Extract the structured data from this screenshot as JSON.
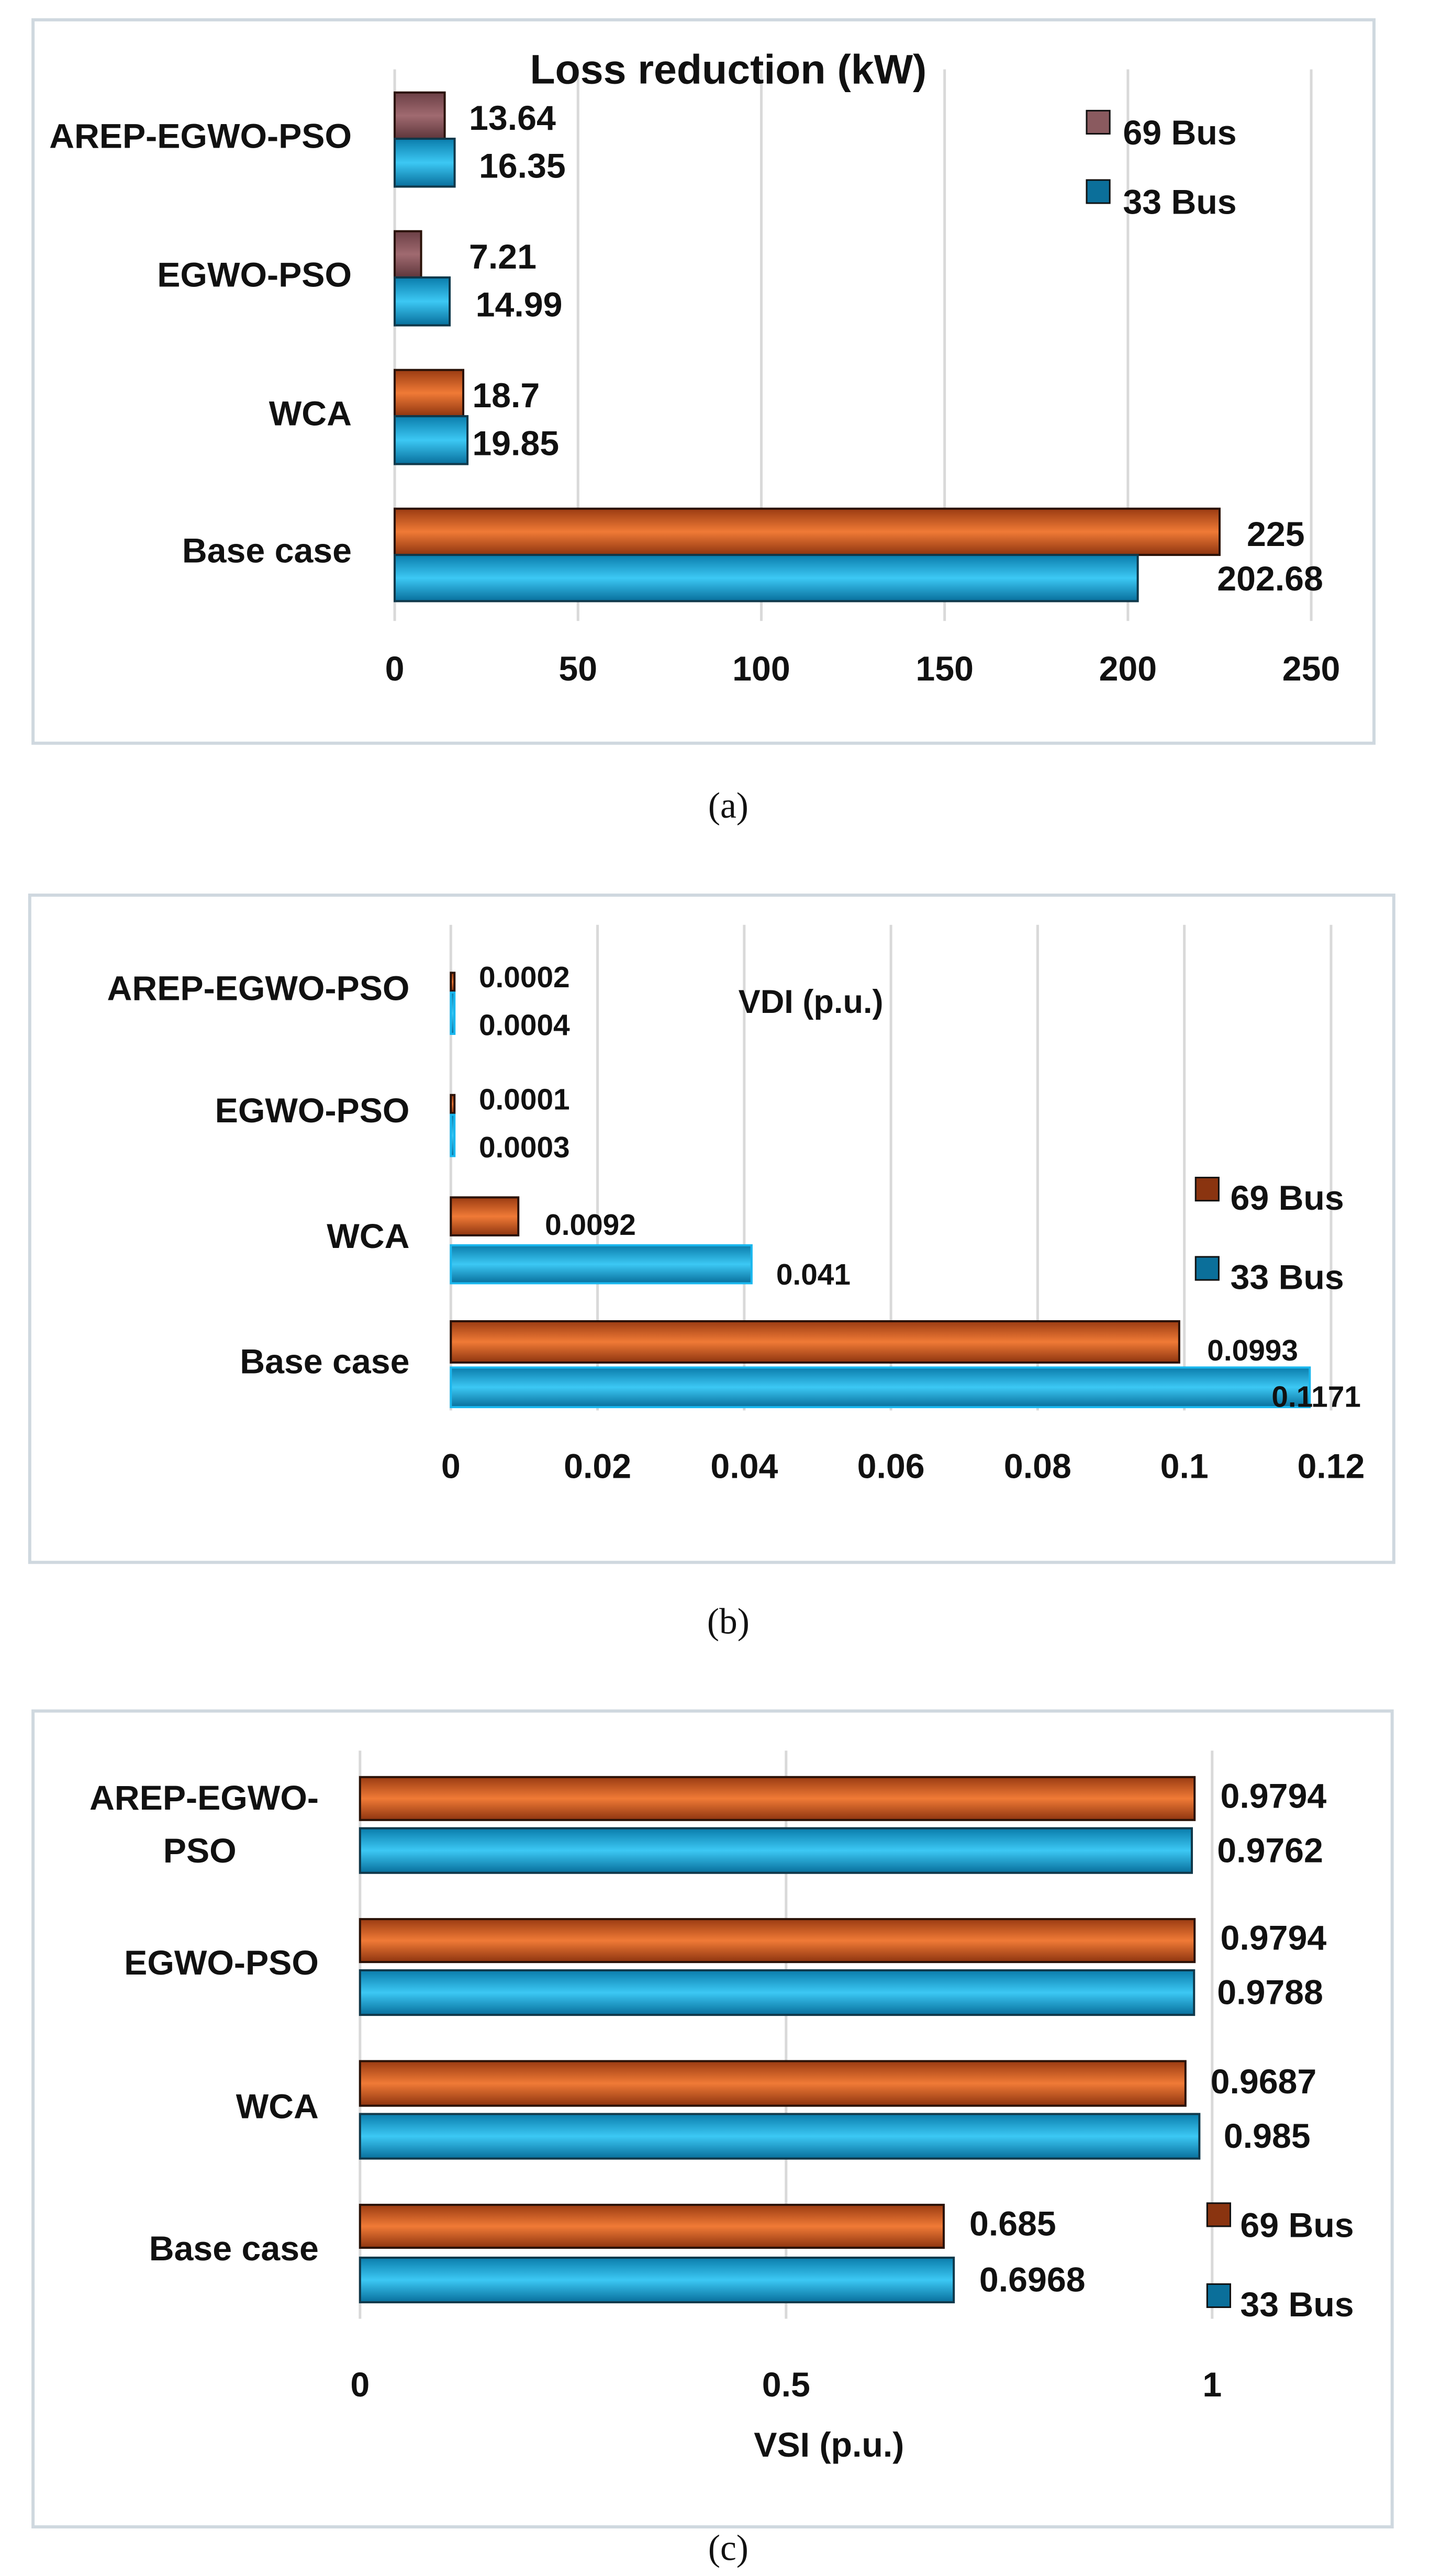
{
  "colors": {
    "bus69": "#c8571c",
    "bus69_dark": "#8a3410",
    "bus69_a": "#8a5a5f",
    "bus33": "#14a8dc",
    "bus33_dark": "#0b6f9a",
    "border": "#cfd8df",
    "grid": "#d9d9d9"
  },
  "chart_data": [
    {
      "type": "bar",
      "orientation": "horizontal",
      "title": "Loss reduction (kW)",
      "caption": "(a)",
      "categories": [
        "AREP-EGWO-PSO",
        "EGWO-PSO",
        "WCA",
        "Base case"
      ],
      "series": [
        {
          "name": "69 Bus",
          "values": [
            13.64,
            7.21,
            18.7,
            225
          ],
          "labels": [
            "13.64",
            "7.21",
            "18.7",
            "225"
          ]
        },
        {
          "name": "33 Bus",
          "values": [
            16.35,
            14.99,
            19.85,
            202.68
          ],
          "labels": [
            "16.35",
            "14.99",
            "19.85",
            "202.68"
          ]
        }
      ],
      "xlim": [
        0,
        250
      ],
      "ticks": [
        0,
        50,
        100,
        150,
        200,
        250
      ],
      "tick_labels": [
        "0",
        "50",
        "100",
        "150",
        "200",
        "250"
      ],
      "legend": [
        "69 Bus",
        "33 Bus"
      ],
      "legend_position": "top-right",
      "grid": true
    },
    {
      "type": "bar",
      "orientation": "horizontal",
      "title": "VDI (p.u.)",
      "caption": "(b)",
      "categories": [
        "AREP-EGWO-PSO",
        "EGWO-PSO",
        "WCA",
        "Base case"
      ],
      "series": [
        {
          "name": "69 Bus",
          "values": [
            0.0002,
            0.0001,
            0.0092,
            0.0993
          ],
          "labels": [
            "0.0002",
            "0.0001",
            "0.0092",
            "0.0993"
          ]
        },
        {
          "name": "33 Bus",
          "values": [
            0.0004,
            0.0003,
            0.041,
            0.1171
          ],
          "labels": [
            "0.0004",
            "0.0003",
            "0.041",
            "0.1171"
          ]
        }
      ],
      "xlim": [
        0,
        0.12
      ],
      "ticks": [
        0,
        0.02,
        0.04,
        0.06,
        0.08,
        0.1,
        0.12
      ],
      "tick_labels": [
        "0",
        "0.02",
        "0.04",
        "0.06",
        "0.08",
        "0.1",
        "0.12"
      ],
      "legend": [
        "69 Bus",
        "33 Bus"
      ],
      "legend_position": "right",
      "grid": true
    },
    {
      "type": "bar",
      "orientation": "horizontal",
      "title": "VSI (p.u.)",
      "caption": "(c)",
      "categories": [
        "AREP-EGWO-PSO",
        "EGWO-PSO",
        "WCA",
        "Base case"
      ],
      "series": [
        {
          "name": "69 Bus",
          "values": [
            0.9794,
            0.9794,
            0.9687,
            0.685
          ],
          "labels": [
            "0.9794",
            "0.9794",
            "0.9687",
            "0.685"
          ]
        },
        {
          "name": "33 Bus",
          "values": [
            0.9762,
            0.9788,
            0.985,
            0.6968
          ],
          "labels": [
            "0.9762",
            "0.9788",
            "0.985",
            "0.6968"
          ]
        }
      ],
      "xlim": [
        0,
        1
      ],
      "ticks": [
        0,
        0.5,
        1
      ],
      "tick_labels": [
        "0",
        "0.5",
        "1"
      ],
      "legend": [
        "69 Bus",
        "33 Bus"
      ],
      "legend_position": "bottom-right",
      "grid": true
    }
  ]
}
